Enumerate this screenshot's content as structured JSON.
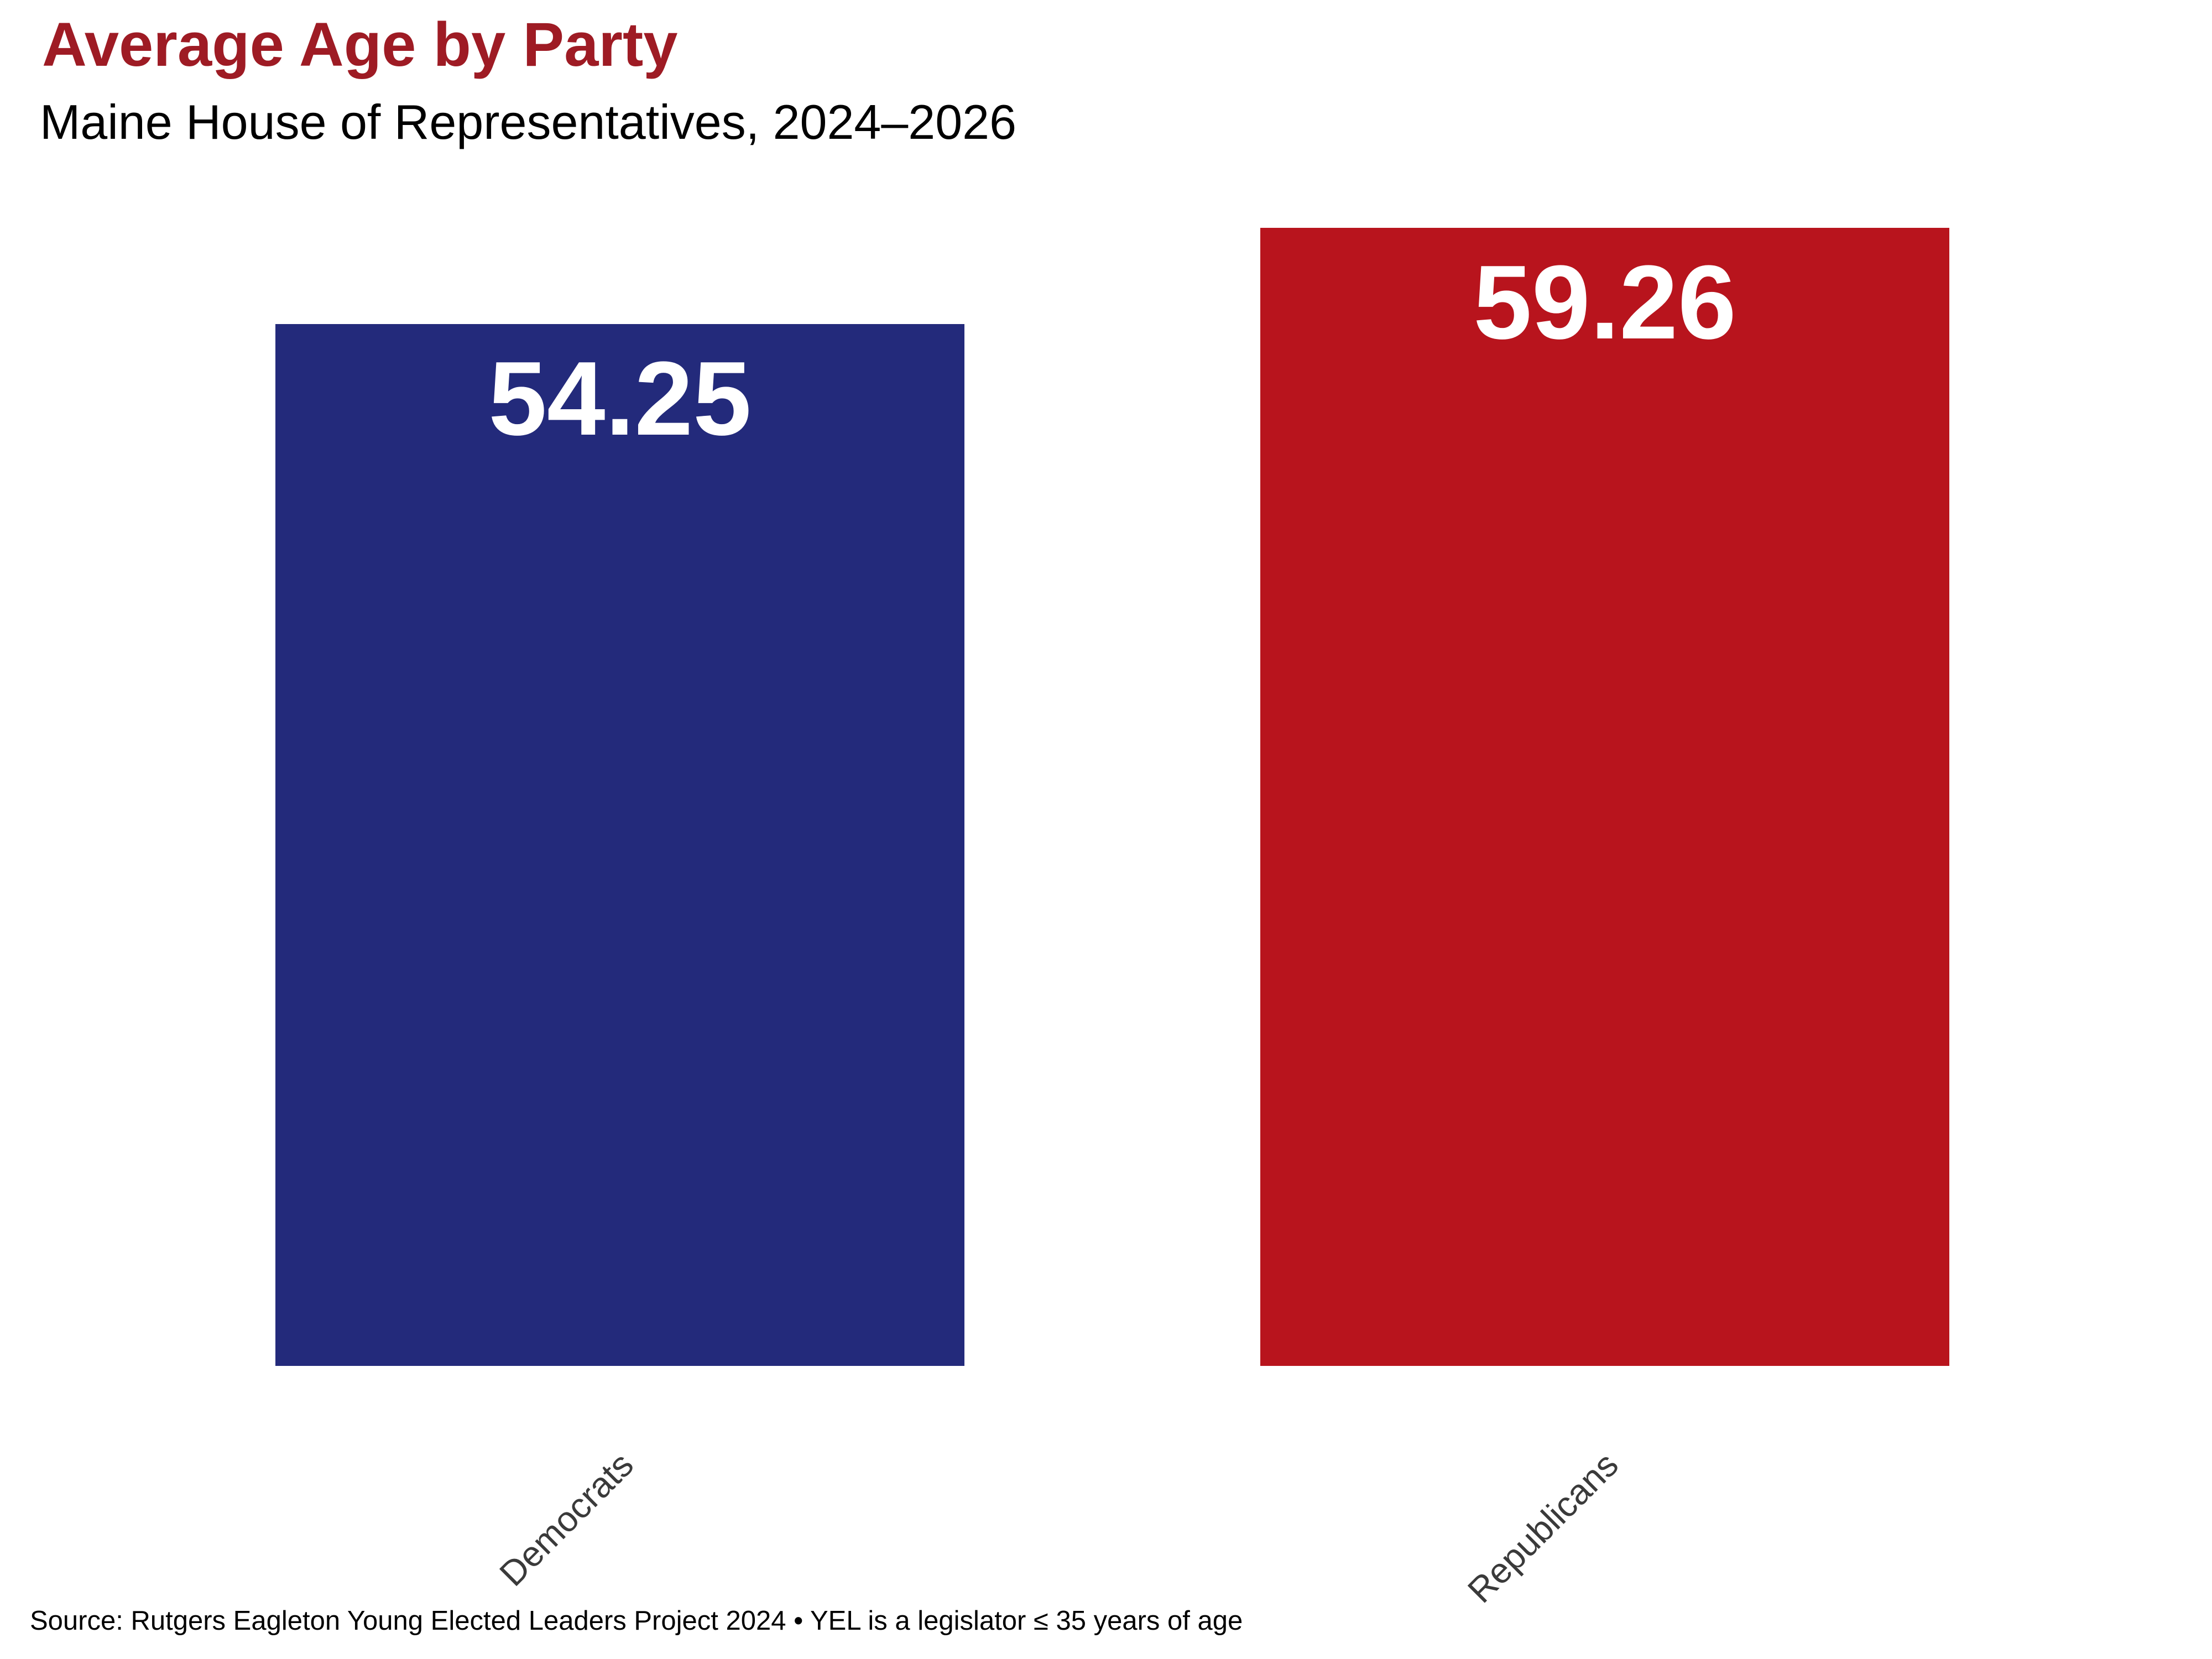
{
  "colors": {
    "background": "#FFFFFF",
    "title": "#9E1B24",
    "democrat_bar": "#232A7B",
    "republican_bar": "#B8141D",
    "value_label": "#FFFFFF",
    "tick_label": "#3A3A3A",
    "source_text": "#000000"
  },
  "chart_data": {
    "type": "bar",
    "title": "Average Age by Party",
    "subtitle": "Maine House of Representatives, 2024–2026",
    "source_note": "Source: Rutgers Eagleton Young Elected Leaders Project 2024 • YEL is a legislator ≤ 35 years of age",
    "categories": [
      "Democrats",
      "Republicans"
    ],
    "values": [
      54.25,
      59.26
    ],
    "value_labels": [
      "54.25",
      "59.26"
    ],
    "series_colors": [
      "#232A7B",
      "#B8141D"
    ],
    "xlabel": "",
    "ylabel": "",
    "ylim": [
      0,
      62
    ],
    "yaxis_visible": false,
    "xaxis_line_visible": false,
    "grid": false,
    "legend": false,
    "value_label_position": "inside-top",
    "tick_rotation_degrees": 45
  }
}
